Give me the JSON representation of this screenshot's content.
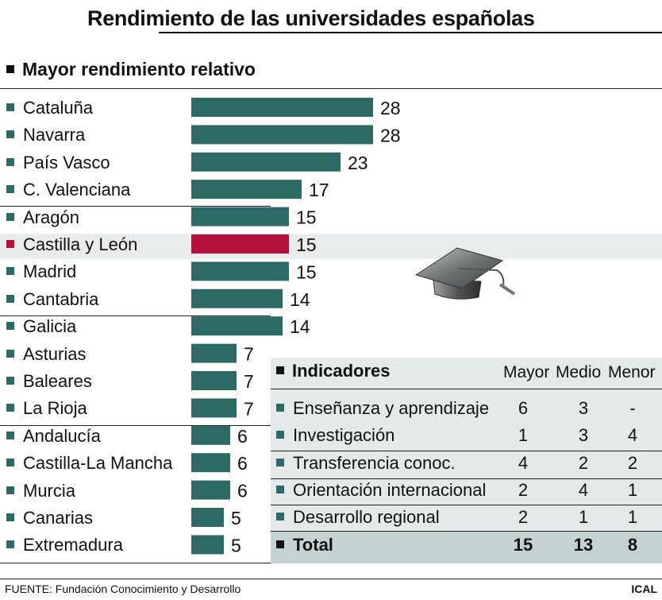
{
  "title": "Rendimiento de las universidades españolas",
  "subtitle": "Mayor rendimiento relativo",
  "colors": {
    "bar": "#2d6a66",
    "highlight": "#b5103c"
  },
  "chart_data": {
    "type": "bar",
    "orientation": "horizontal",
    "categories": [
      "Cataluña",
      "Navarra",
      "País Vasco",
      "C. Valenciana",
      "Aragón",
      "Castilla y León",
      "Madrid",
      "Cantabria",
      "Galicia",
      "Asturias",
      "Baleares",
      "La Rioja",
      "Andalucía",
      "Castilla-La Mancha",
      "Murcia",
      "Canarias",
      "Extremadura"
    ],
    "values": [
      28,
      28,
      23,
      17,
      15,
      15,
      15,
      14,
      14,
      7,
      7,
      7,
      6,
      6,
      6,
      5,
      5
    ],
    "highlight": "Castilla y León",
    "title": "Mayor rendimiento relativo",
    "xlim": [
      0,
      28
    ],
    "grid": false
  },
  "indicators": {
    "header": "Indicadores",
    "columns": [
      "Mayor",
      "Medio",
      "Menor"
    ],
    "rows": [
      {
        "label": "Enseñanza y aprendizaje",
        "values": [
          "6",
          "3",
          "-"
        ]
      },
      {
        "label": "Investigación",
        "values": [
          "1",
          "3",
          "4"
        ]
      },
      {
        "label": "Transferencia conoc.",
        "values": [
          "4",
          "2",
          "2"
        ]
      },
      {
        "label": "Orientación internacional",
        "values": [
          "2",
          "4",
          "1"
        ]
      },
      {
        "label": "Desarrollo regional",
        "values": [
          "2",
          "1",
          "1"
        ]
      }
    ],
    "total": {
      "label": "Total",
      "values": [
        "15",
        "13",
        "8"
      ]
    }
  },
  "footer": {
    "source": "FUENTE: Fundación Conocimiento y Desarrollo",
    "brand": "ICAL"
  },
  "icons": {
    "cap": "graduation-cap-icon"
  }
}
